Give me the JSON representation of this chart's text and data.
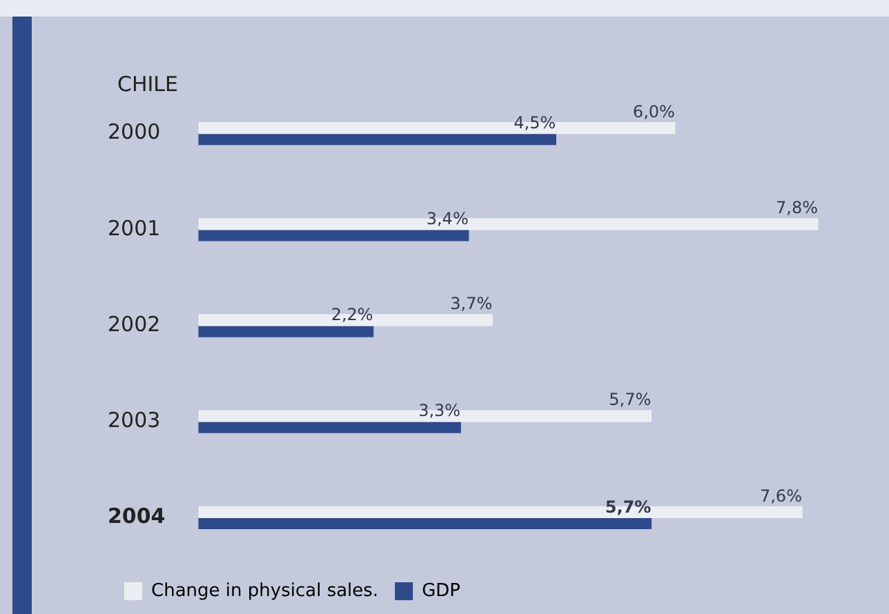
{
  "chart_data": {
    "type": "bar",
    "orientation": "horizontal",
    "title": "CHILE",
    "categories": [
      "2000",
      "2001",
      "2002",
      "2003",
      "2004"
    ],
    "series": [
      {
        "name": "Change in physical sales.",
        "color": "#eceef4",
        "values": [
          6.0,
          7.8,
          3.7,
          5.7,
          7.6
        ],
        "value_labels": [
          "6,0%",
          "7,8%",
          "3,7%",
          "5,7%",
          "7,6%"
        ]
      },
      {
        "name": "GDP",
        "color": "#2f4a8a",
        "values": [
          4.5,
          3.4,
          2.2,
          3.3,
          5.7
        ],
        "value_labels": [
          "4,5%",
          "3,4%",
          "2,2%",
          "3,3%",
          "5,7%"
        ]
      }
    ],
    "legend": "bottom",
    "grid": false
  }
}
